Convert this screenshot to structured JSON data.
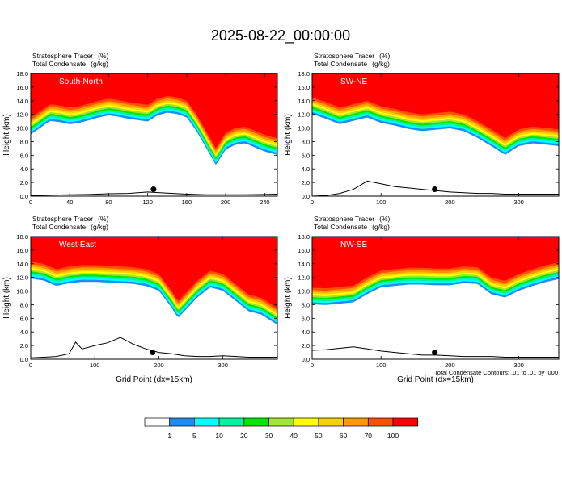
{
  "figure": {
    "title": "2025-08-22_00:00:00",
    "footnote": "Total Condensate Contours: .01 to .01 by .000"
  },
  "colors": {
    "levels": [
      "#ffffff",
      "#1e8cf0",
      "#00ffff",
      "#00f5a0",
      "#00e600",
      "#a0e632",
      "#ffff00",
      "#f5d200",
      "#ff9b00",
      "#ff5000",
      "#ff0000"
    ]
  },
  "legend": {
    "ticks": [
      "1",
      "5",
      "10",
      "20",
      "30",
      "40",
      "50",
      "60",
      "70",
      "100"
    ]
  },
  "chart_data": [
    {
      "type": "heatmap",
      "title": "South-North",
      "field_labels": [
        {
          "name": "Stratosphere Tracer",
          "unit": "(%)"
        },
        {
          "name": "Total Condensate",
          "unit": "(g/kg)"
        }
      ],
      "ylabel": "Height (km)",
      "xlabel": "",
      "xlim": [
        0,
        253
      ],
      "ylim": [
        0,
        18
      ],
      "xticks": [
        "0",
        "40",
        "80",
        "120",
        "160",
        "200",
        "240"
      ],
      "yticks": [
        "0.0",
        "2.0",
        "4.0",
        "6.0",
        "8.0",
        "10.0",
        "12.0",
        "14.0",
        "16.0",
        "18.0"
      ],
      "tracer_base": {
        "x": [
          0,
          10,
          20,
          30,
          40,
          50,
          60,
          70,
          80,
          90,
          100,
          110,
          120,
          130,
          140,
          150,
          160,
          170,
          180,
          190,
          200,
          210,
          220,
          230,
          240,
          253
        ],
        "y": [
          11.5,
          12.5,
          13.5,
          13.3,
          13.0,
          13.2,
          13.6,
          14.0,
          14.3,
          14.1,
          13.8,
          13.6,
          13.4,
          14.3,
          14.7,
          14.5,
          14.0,
          12.0,
          9.5,
          7.0,
          9.3,
          10.0,
          10.2,
          9.6,
          9.0,
          8.5
        ]
      },
      "terrain": {
        "x": [
          0,
          20,
          40,
          60,
          80,
          100,
          120,
          140,
          160,
          180,
          200,
          220,
          240,
          253
        ],
        "y": [
          0.1,
          0.15,
          0.2,
          0.25,
          0.35,
          0.4,
          0.6,
          0.45,
          0.3,
          0.2,
          0.2,
          0.2,
          0.25,
          0.3
        ]
      },
      "marker_x": 126,
      "marker_y": 1.0
    },
    {
      "type": "heatmap",
      "title": "SW-NE",
      "field_labels": [
        {
          "name": "Stratosphere Tracer",
          "unit": "(%)"
        },
        {
          "name": "Total Condensate",
          "unit": "(g/kg)"
        }
      ],
      "ylabel": "Height (km)",
      "xlabel": "",
      "xlim": [
        0,
        358
      ],
      "ylim": [
        0,
        18
      ],
      "xticks": [
        "0",
        "100",
        "200",
        "300"
      ],
      "yticks": [
        "0.0",
        "2.0",
        "4.0",
        "6.0",
        "8.0",
        "10.0",
        "12.0",
        "14.0",
        "16.0",
        "18.0"
      ],
      "tracer_base": {
        "x": [
          0,
          20,
          40,
          60,
          80,
          100,
          120,
          140,
          160,
          180,
          200,
          220,
          240,
          260,
          280,
          300,
          320,
          340,
          358
        ],
        "y": [
          14.5,
          13.8,
          13.0,
          13.5,
          14.0,
          13.2,
          12.8,
          12.3,
          12.0,
          12.2,
          12.4,
          12.0,
          11.0,
          9.8,
          8.5,
          9.8,
          10.2,
          10.0,
          9.8
        ]
      },
      "terrain": {
        "x": [
          0,
          20,
          40,
          60,
          80,
          100,
          120,
          140,
          160,
          180,
          200,
          220,
          240,
          260,
          280,
          300,
          320,
          340,
          358
        ],
        "y": [
          0.0,
          0.1,
          0.4,
          1.0,
          2.2,
          1.8,
          1.4,
          1.2,
          1.0,
          0.8,
          0.6,
          0.5,
          0.4,
          0.4,
          0.3,
          0.3,
          0.3,
          0.3,
          0.3
        ]
      },
      "marker_x": 178,
      "marker_y": 1.0
    },
    {
      "type": "heatmap",
      "title": "West-East",
      "field_labels": [
        {
          "name": "Stratosphere Tracer",
          "unit": "(%)"
        },
        {
          "name": "Total Condensate",
          "unit": "(g/kg)"
        }
      ],
      "ylabel": "Height (km)",
      "xlabel": "Grid Point  (dx=15km)",
      "xlim": [
        0,
        385
      ],
      "ylim": [
        0,
        18
      ],
      "xticks": [
        "0",
        "100",
        "200",
        "300"
      ],
      "yticks": [
        "0.0",
        "2.0",
        "4.0",
        "6.0",
        "8.0",
        "10.0",
        "12.0",
        "14.0",
        "16.0",
        "18.0"
      ],
      "tracer_base": {
        "x": [
          0,
          20,
          40,
          60,
          80,
          100,
          120,
          140,
          160,
          180,
          200,
          220,
          230,
          240,
          260,
          280,
          300,
          320,
          340,
          360,
          385
        ],
        "y": [
          14.3,
          14.0,
          13.2,
          13.6,
          13.8,
          13.8,
          13.7,
          13.6,
          13.5,
          13.2,
          12.5,
          10.0,
          8.5,
          9.5,
          11.5,
          13.0,
          12.5,
          11.0,
          9.5,
          9.0,
          7.5
        ]
      },
      "terrain": {
        "x": [
          0,
          20,
          40,
          60,
          70,
          80,
          100,
          120,
          140,
          160,
          180,
          200,
          220,
          240,
          260,
          280,
          300,
          320,
          340,
          360,
          385
        ],
        "y": [
          0.2,
          0.3,
          0.4,
          0.8,
          2.5,
          1.5,
          2.0,
          2.4,
          3.2,
          2.2,
          1.5,
          1.0,
          0.8,
          0.5,
          0.4,
          0.4,
          0.5,
          0.4,
          0.3,
          0.3,
          0.3
        ]
      },
      "marker_x": 190,
      "marker_y": 1.0
    },
    {
      "type": "heatmap",
      "title": "NW-SE",
      "field_labels": [
        {
          "name": "Stratosphere Tracer",
          "unit": "(%)"
        },
        {
          "name": "Total Condensate",
          "unit": "(g/kg)"
        }
      ],
      "ylabel": "Height (km)",
      "xlabel": "Grid Point  (dx=15km)",
      "xlim": [
        0,
        358
      ],
      "ylim": [
        0,
        18
      ],
      "xticks": [
        "0",
        "100",
        "200",
        "300"
      ],
      "yticks": [
        "0.0",
        "2.0",
        "4.0",
        "6.0",
        "8.0",
        "10.0",
        "12.0",
        "14.0",
        "16.0",
        "18.0"
      ],
      "tracer_base": {
        "x": [
          0,
          20,
          40,
          60,
          80,
          100,
          120,
          140,
          160,
          180,
          200,
          220,
          240,
          260,
          280,
          300,
          320,
          340,
          358
        ],
        "y": [
          10.5,
          10.4,
          10.6,
          10.8,
          12.0,
          13.0,
          13.2,
          13.4,
          13.4,
          13.3,
          13.3,
          13.6,
          13.5,
          12.0,
          11.5,
          12.5,
          13.2,
          13.8,
          14.2
        ]
      },
      "terrain": {
        "x": [
          0,
          20,
          40,
          60,
          80,
          100,
          120,
          140,
          160,
          180,
          200,
          220,
          240,
          260,
          280,
          300,
          320,
          340,
          358
        ],
        "y": [
          1.3,
          1.4,
          1.6,
          1.8,
          1.5,
          1.2,
          1.0,
          0.8,
          0.6,
          0.6,
          0.5,
          0.4,
          0.4,
          0.4,
          0.3,
          0.3,
          0.3,
          0.3,
          0.3
        ]
      },
      "marker_x": 178,
      "marker_y": 1.0
    }
  ]
}
